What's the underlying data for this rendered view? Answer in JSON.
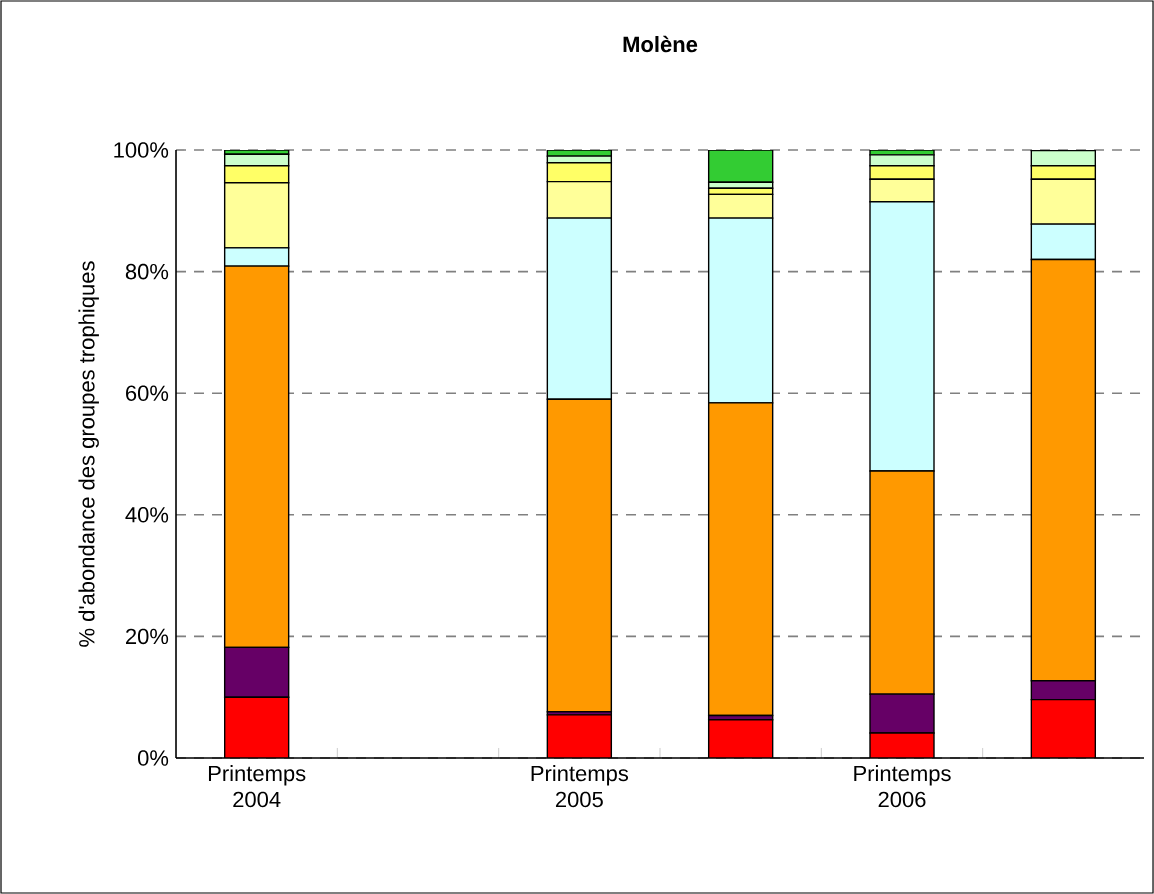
{
  "chart_data": {
    "type": "bar",
    "stacked": true,
    "title": "Molène",
    "ylabel": "% d'abondance des groupes trophiques",
    "categories": [
      "Printemps 2004",
      null,
      "Printemps 2005",
      null,
      "Printemps 2006",
      null
    ],
    "series": [
      {
        "color": "#ff0000",
        "values": [
          10,
          null,
          7.1,
          6.3,
          4.1,
          9.6
        ]
      },
      {
        "color": "#660066",
        "values": [
          8.2,
          null,
          0.5,
          0.7,
          6.4,
          3.1
        ]
      },
      {
        "color": "#ff9900",
        "values": [
          62.7,
          null,
          51.4,
          51.4,
          36.7,
          69.3
        ]
      },
      {
        "color": "#ccffff",
        "values": [
          3.0,
          null,
          29.8,
          30.4,
          44.3,
          5.8
        ]
      },
      {
        "color": "#ffff99",
        "values": [
          10.7,
          null,
          6.0,
          3.9,
          3.7,
          7.4
        ]
      },
      {
        "color": "#ffff66",
        "values": [
          2.8,
          null,
          3.1,
          1.0,
          2.2,
          2.2
        ]
      },
      {
        "color": "#ccffcc",
        "values": [
          1.9,
          null,
          1.1,
          1.0,
          1.8,
          2.5
        ]
      },
      {
        "color": "#33cc33",
        "values": [
          0.7,
          null,
          1.0,
          5.3,
          0.8,
          0.1
        ]
      }
    ],
    "ylim": [
      0,
      100
    ],
    "yticks": [
      {
        "value": 0,
        "label": "0%"
      },
      {
        "value": 20,
        "label": "20%"
      },
      {
        "value": 40,
        "label": "40%"
      },
      {
        "value": 60,
        "label": "60%"
      },
      {
        "value": 80,
        "label": "80%"
      },
      {
        "value": 100,
        "label": "100%"
      }
    ],
    "grid": "y"
  }
}
